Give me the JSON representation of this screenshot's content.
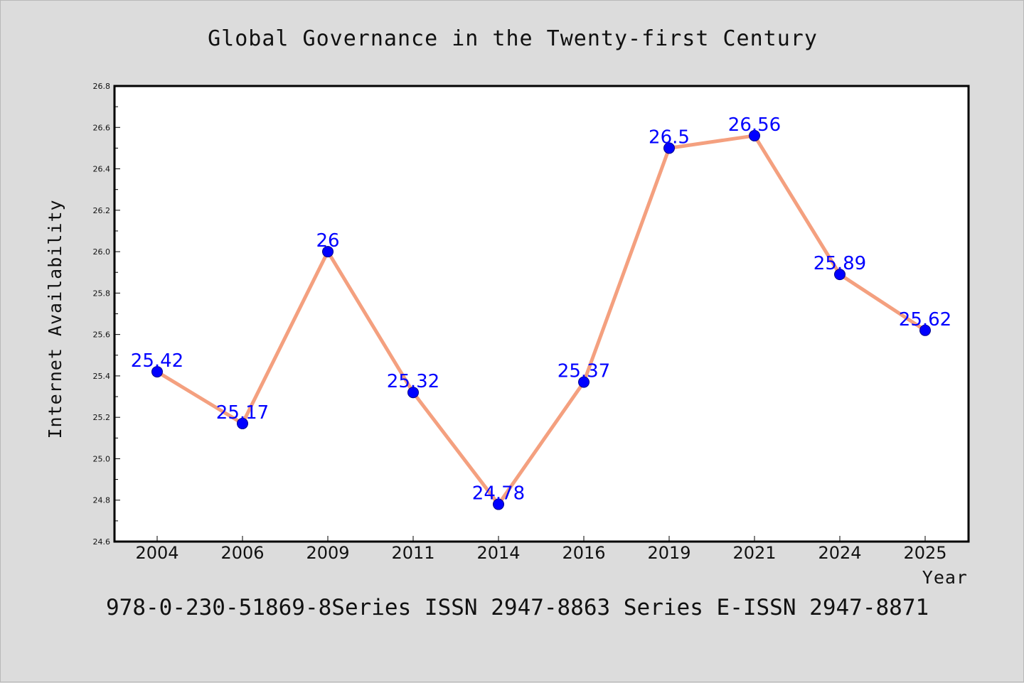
{
  "colors": {
    "background": "#dcdcdc",
    "plot_background": "#ffffff",
    "line": "#f4a07f",
    "marker": "#0000ff",
    "data_label": "#0000ff"
  },
  "footer": {
    "text": "978-0-230-51869-8Series ISSN 2947-8863 Series E-ISSN 2947-8871"
  },
  "chart_data": {
    "type": "line",
    "title": "Global Governance in the Twenty-first Century",
    "xlabel": "Year",
    "ylabel": "Internet Availability",
    "categories": [
      "2004",
      "2006",
      "2009",
      "2011",
      "2014",
      "2016",
      "2019",
      "2021",
      "2024",
      "2025"
    ],
    "series": [
      {
        "values": [
          25.42,
          25.17,
          26,
          25.32,
          24.78,
          25.37,
          26.5,
          26.56,
          25.89,
          25.62
        ],
        "data_labels": [
          "25.42",
          "25.17",
          "26",
          "25.32",
          "24.78",
          "25.37",
          "26.5",
          "26.56",
          "25.89",
          "25.62"
        ]
      }
    ],
    "ylim": [
      24.6,
      26.8
    ],
    "yticks": [
      "24.6",
      "24.8",
      "25.0",
      "25.2",
      "25.4",
      "25.6",
      "25.8",
      "26.0",
      "26.2",
      "26.4",
      "26.6",
      "26.8"
    ],
    "grid": false,
    "legend": "none"
  }
}
